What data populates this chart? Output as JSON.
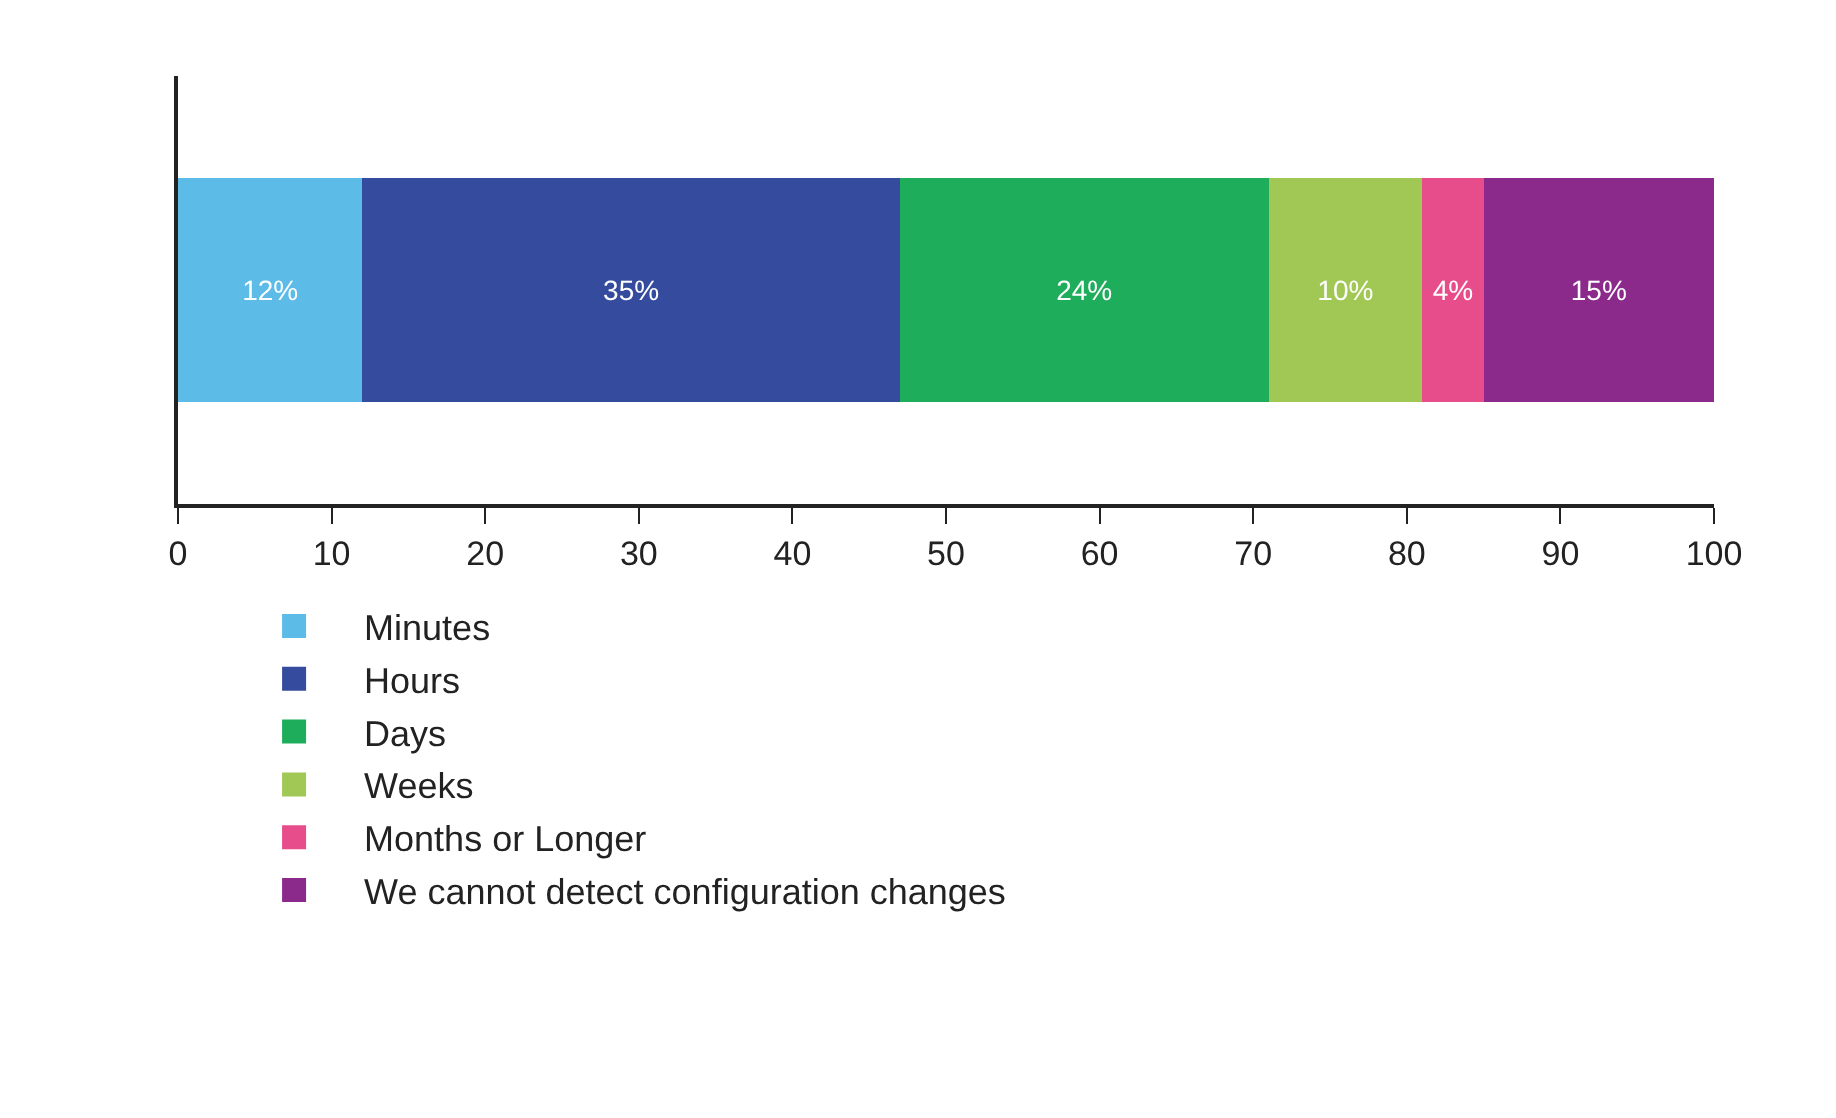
{
  "chart_data": {
    "type": "bar",
    "orientation": "horizontal",
    "stacked": true,
    "categories": [
      null
    ],
    "series": [
      {
        "name": "Minutes",
        "color": "#5dbbe8",
        "values": [
          12
        ],
        "value_labels": [
          "12%"
        ]
      },
      {
        "name": "Hours",
        "color": "#354c9e",
        "values": [
          35
        ],
        "value_labels": [
          "35%"
        ]
      },
      {
        "name": "Days",
        "color": "#1ead5b",
        "values": [
          24
        ],
        "value_labels": [
          "24%"
        ]
      },
      {
        "name": "Weeks",
        "color": "#a1c854",
        "values": [
          10
        ],
        "value_labels": [
          "10%"
        ]
      },
      {
        "name": "Months or Longer",
        "color": "#e84d8b",
        "values": [
          4
        ],
        "value_labels": [
          "4%"
        ]
      },
      {
        "name": "We cannot detect configuration changes",
        "color": "#8b2a8b",
        "values": [
          15
        ],
        "value_labels": [
          "15%"
        ]
      }
    ],
    "xlim": [
      0,
      100
    ],
    "xticks": [
      0,
      10,
      20,
      30,
      40,
      50,
      60,
      70,
      80,
      90,
      100
    ],
    "grid": false,
    "legend": "bottom left"
  }
}
